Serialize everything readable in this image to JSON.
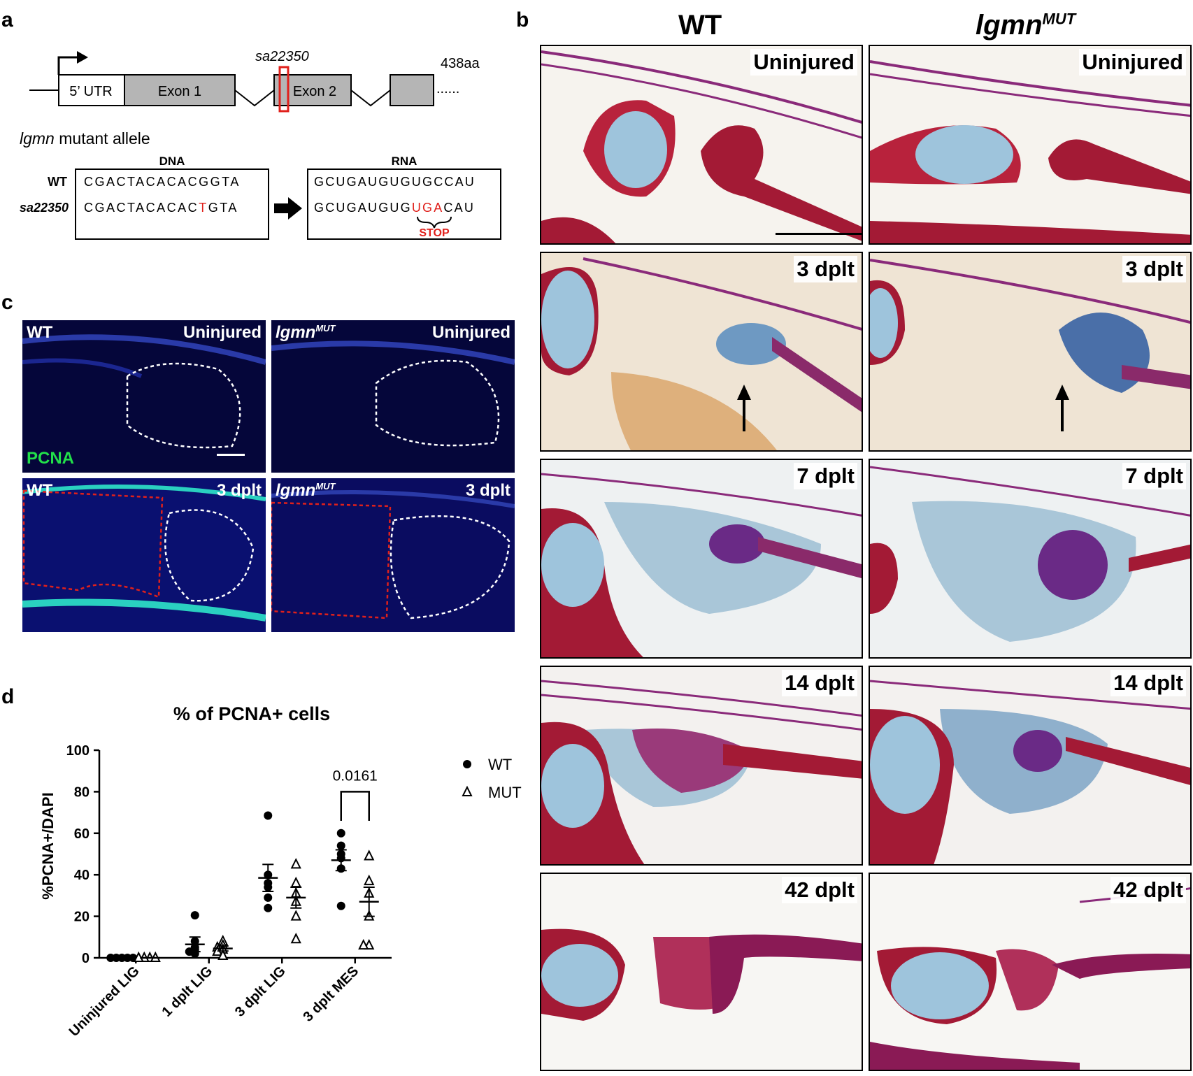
{
  "panels": {
    "a": "a",
    "b": "b",
    "c": "c",
    "d": "d"
  },
  "panel_a": {
    "allele_id": "sa22350",
    "protein_length": "438aa",
    "utr_label": "5’ UTR",
    "exon1_label": "Exon 1",
    "exon2_label": "Exon 2",
    "ellipsis": "......",
    "mutant_title_gene": "lgmn",
    "mutant_title_rest": " mutant allele",
    "dna_header": "DNA",
    "rna_header": "RNA",
    "wt_row_label": "WT",
    "mut_row_label": "sa22350",
    "dna_wt": "CGACTACACACGGTA",
    "dna_mut_prefix": "CGACTACACAC",
    "dna_mut_change": "T",
    "dna_mut_suffix": "GTA",
    "rna_wt": "GCUGAUGUGUGCCAU",
    "rna_mut_prefix": "GCUGAUGUG",
    "rna_mut_codon": "UGA",
    "rna_mut_suffix": "CAU",
    "stop_label": "STOP",
    "highlight_color": "#e0201b"
  },
  "panel_b": {
    "wt_header": "WT",
    "mut_header_base": "lgmn",
    "mut_header_sup": "MUT",
    "rows": [
      {
        "wt_label": "Uninjured",
        "mut_label": "Uninjured"
      },
      {
        "wt_label": "3 dplt",
        "mut_label": "3 dplt"
      },
      {
        "wt_label": "7 dplt",
        "mut_label": "7 dplt"
      },
      {
        "wt_label": "14 dplt",
        "mut_label": "14 dplt"
      },
      {
        "wt_label": "42 dplt",
        "mut_label": "42 dplt"
      }
    ]
  },
  "panel_c": {
    "wt_label": "WT",
    "mut_base": "lgmn",
    "mut_sup": "MUT",
    "uninjured": "Uninjured",
    "dplt3": "3 dplt",
    "pcna": "PCNA",
    "pcna_color": "#22e04a"
  },
  "chart_data": {
    "type": "scatter",
    "title": "% of PCNA+ cells",
    "ylabel": "%PCNA+/DAPI",
    "xlabel": "",
    "ylim": [
      0,
      100
    ],
    "yticks": [
      0,
      20,
      40,
      60,
      80,
      100
    ],
    "categories": [
      "Uninjured LIG",
      "1 dplt LIG",
      "3 dplt LIG",
      "3 dplt MES"
    ],
    "series": [
      {
        "name": "WT",
        "marker": "filled-circle",
        "points": [
          [
            0,
            0,
            0,
            0,
            0
          ],
          [
            20.5,
            8,
            5,
            4,
            3,
            2
          ],
          [
            68.5,
            40,
            36,
            34,
            29,
            24
          ],
          [
            60,
            54,
            50,
            48,
            43,
            25
          ]
        ],
        "mean": [
          0,
          6.5,
          38.5,
          47
        ],
        "sem": [
          0,
          3.5,
          6.5,
          5
        ]
      },
      {
        "name": "MUT",
        "marker": "open-triangle",
        "points": [
          [
            0,
            0,
            0,
            0
          ],
          [
            8,
            6,
            5,
            4,
            3,
            1
          ],
          [
            45,
            36,
            31,
            27,
            20,
            9
          ],
          [
            49,
            37,
            31,
            20,
            6,
            6
          ]
        ],
        "mean": [
          0,
          4.5,
          29,
          27
        ],
        "sem": [
          0,
          1.2,
          5,
          7
        ]
      }
    ],
    "annotation": {
      "text": "0.0161",
      "between": [
        "WT",
        "MUT"
      ],
      "category": "3 dplt MES"
    },
    "legend_position": "right"
  }
}
